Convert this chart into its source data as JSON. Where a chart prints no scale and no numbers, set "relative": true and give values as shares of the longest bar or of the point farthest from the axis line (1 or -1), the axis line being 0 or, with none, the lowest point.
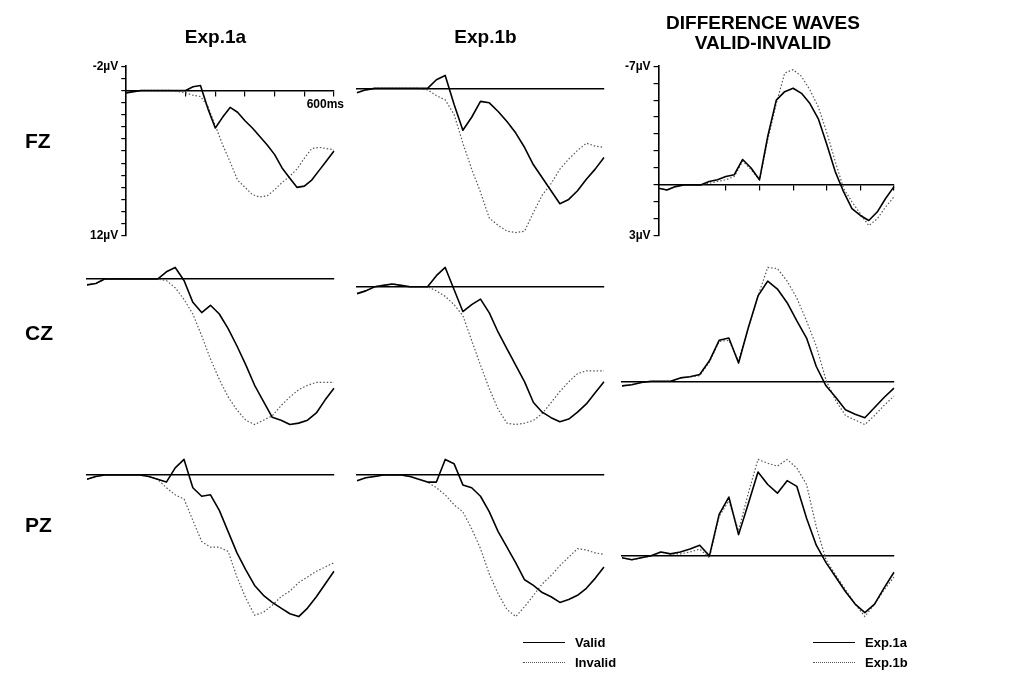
{
  "chart_data": [
    {
      "type": "line",
      "title": "Exp.1a",
      "ylabel": "FZ",
      "tick_labels": "y",
      "annotations": [
        "600ms"
      ],
      "ylim": [
        12,
        -2
      ],
      "categories": [
        null,
        null,
        null,
        null,
        null,
        null,
        null,
        null,
        null,
        null,
        null,
        null,
        null,
        null,
        null,
        null,
        null,
        null,
        null,
        null,
        null,
        null,
        null,
        null,
        null,
        null,
        null,
        null,
        null
      ],
      "yticks": [
        {
          "value": -2,
          "label": "-2µV"
        },
        {
          "value": -1,
          "label": null
        },
        {
          "value": 0,
          "label": null
        },
        {
          "value": 1,
          "label": null
        },
        {
          "value": 2,
          "label": null
        },
        {
          "value": 3,
          "label": null
        },
        {
          "value": 4,
          "label": null
        },
        {
          "value": 5,
          "label": null
        },
        {
          "value": 6,
          "label": null
        },
        {
          "value": 7,
          "label": null
        },
        {
          "value": 8,
          "label": null
        },
        {
          "value": 9,
          "label": null
        },
        {
          "value": 10,
          "label": null
        },
        {
          "value": 11,
          "label": null
        },
        {
          "value": 12,
          "label": "12µV"
        }
      ],
      "series": [
        {
          "color": "#000000",
          "line_style": "solid",
          "values": [
            0.2,
            0.1,
            0,
            0,
            0,
            0,
            0,
            0,
            0,
            -0.3,
            -0.4,
            1.5,
            3.1,
            2.2,
            1.4,
            1.8,
            2.5,
            3.1,
            3.8,
            4.5,
            5.3,
            6.4,
            7.2,
            8.0,
            7.9,
            7.4,
            6.6,
            5.8,
            5.0
          ]
        },
        {
          "color": "#555555",
          "line_style": "dotted",
          "values": [
            0.2,
            0.1,
            0,
            0,
            0,
            0,
            0,
            0.1,
            0.2,
            0.4,
            0.5,
            1.3,
            2.9,
            4.5,
            5.9,
            7.4,
            8.0,
            8.6,
            8.8,
            8.7,
            8.2,
            7.6,
            7.1,
            6.5,
            5.6,
            4.8,
            4.7,
            4.8,
            4.9
          ]
        }
      ]
    },
    {
      "type": "line",
      "title": "Exp.1b",
      "relative": true,
      "categories": [
        null,
        null,
        null,
        null,
        null,
        null,
        null,
        null,
        null,
        null,
        null,
        null,
        null,
        null,
        null,
        null,
        null,
        null,
        null,
        null,
        null,
        null,
        null,
        null,
        null,
        null,
        null,
        null,
        null
      ],
      "series": [
        {
          "color": "#000000",
          "line_style": "solid",
          "values": [
            -0.03,
            -0.01,
            0,
            0,
            0,
            0,
            0,
            0,
            0,
            0.06,
            0.09,
            -0.11,
            -0.29,
            -0.2,
            -0.09,
            -0.1,
            -0.16,
            -0.23,
            -0.31,
            -0.41,
            -0.53,
            -0.62,
            -0.71,
            -0.8,
            -0.77,
            -0.71,
            -0.63,
            -0.56,
            -0.48
          ]
        },
        {
          "color": "#555555",
          "line_style": "dotted",
          "values": [
            -0.03,
            -0.01,
            0,
            0,
            0,
            0,
            0,
            0,
            -0.01,
            -0.05,
            -0.08,
            -0.18,
            -0.38,
            -0.56,
            -0.72,
            -0.9,
            -0.95,
            -0.99,
            -1,
            -0.99,
            -0.86,
            -0.74,
            -0.66,
            -0.56,
            -0.49,
            -0.43,
            -0.38,
            -0.4,
            -0.41
          ]
        }
      ]
    },
    {
      "type": "line",
      "title": "DIFFERENCE WAVES",
      "subtitle": "VALID-INVALID",
      "tick_labels": "y",
      "ylim": [
        3,
        -7
      ],
      "categories": [
        null,
        null,
        null,
        null,
        null,
        null,
        null,
        null,
        null,
        null,
        null,
        null,
        null,
        null,
        null,
        null,
        null,
        null,
        null,
        null,
        null,
        null,
        null,
        null,
        null,
        null,
        null,
        null,
        null
      ],
      "yticks": [
        {
          "value": -7,
          "label": "-7µV"
        },
        {
          "value": -6,
          "label": null
        },
        {
          "value": -5,
          "label": null
        },
        {
          "value": -4,
          "label": null
        },
        {
          "value": -3,
          "label": null
        },
        {
          "value": -2,
          "label": null
        },
        {
          "value": -1,
          "label": null
        },
        {
          "value": 0,
          "label": null
        },
        {
          "value": 1,
          "label": null
        },
        {
          "value": 2,
          "label": null
        },
        {
          "value": 3,
          "label": "3µV"
        }
      ],
      "series": [
        {
          "color": "#000000",
          "line_style": "solid",
          "values": [
            0.2,
            0.3,
            0.1,
            0,
            0,
            0,
            -0.2,
            -0.3,
            -0.5,
            -0.6,
            -1.5,
            -1.0,
            -0.3,
            -2.9,
            -5.0,
            -5.5,
            -5.7,
            -5.4,
            -4.8,
            -3.9,
            -2.4,
            -0.8,
            0.4,
            1.4,
            1.8,
            2.1,
            1.6,
            0.8,
            0.1
          ]
        },
        {
          "color": "#555555",
          "line_style": "dotted",
          "values": [
            0.2,
            0.3,
            0.1,
            0,
            0,
            0,
            -0.1,
            -0.2,
            -0.3,
            -0.5,
            -1.4,
            -0.9,
            -0.3,
            -2.7,
            -4.8,
            -6.6,
            -6.8,
            -6.4,
            -5.6,
            -4.6,
            -3.1,
            -1.4,
            0.2,
            1.0,
            1.7,
            2.4,
            2.0,
            1.3,
            0.7
          ]
        }
      ]
    },
    {
      "type": "line",
      "ylabel": "CZ",
      "relative": true,
      "categories": [
        null,
        null,
        null,
        null,
        null,
        null,
        null,
        null,
        null,
        null,
        null,
        null,
        null,
        null,
        null,
        null,
        null,
        null,
        null,
        null,
        null,
        null,
        null,
        null,
        null,
        null,
        null,
        null,
        null
      ],
      "series": [
        {
          "color": "#000000",
          "line_style": "solid",
          "values": [
            -0.04,
            -0.03,
            0,
            0,
            0,
            0,
            0,
            0,
            0,
            0.05,
            0.08,
            -0.01,
            -0.16,
            -0.23,
            -0.18,
            -0.24,
            -0.34,
            -0.46,
            -0.59,
            -0.73,
            -0.84,
            -0.95,
            -0.97,
            -1,
            -0.99,
            -0.97,
            -0.92,
            -0.83,
            -0.75
          ]
        },
        {
          "color": "#555555",
          "line_style": "dotted",
          "values": [
            -0.04,
            -0.03,
            0,
            0,
            0,
            0,
            0,
            0,
            0,
            -0.01,
            -0.06,
            -0.14,
            -0.24,
            -0.39,
            -0.55,
            -0.69,
            -0.81,
            -0.9,
            -0.97,
            -1,
            -0.97,
            -0.94,
            -0.87,
            -0.81,
            -0.76,
            -0.73,
            -0.71,
            -0.71,
            -0.71
          ]
        }
      ]
    },
    {
      "type": "line",
      "relative": true,
      "categories": [
        null,
        null,
        null,
        null,
        null,
        null,
        null,
        null,
        null,
        null,
        null,
        null,
        null,
        null,
        null,
        null,
        null,
        null,
        null,
        null,
        null,
        null,
        null,
        null,
        null,
        null,
        null,
        null,
        null
      ],
      "series": [
        {
          "color": "#000000",
          "line_style": "solid",
          "values": [
            -0.05,
            -0.03,
            0,
            0.01,
            0.02,
            0.01,
            0,
            0,
            0,
            0.08,
            0.14,
            -0.02,
            -0.18,
            -0.13,
            -0.09,
            -0.19,
            -0.33,
            -0.45,
            -0.57,
            -0.69,
            -0.84,
            -0.91,
            -0.95,
            -0.98,
            -0.96,
            -0.91,
            -0.85,
            -0.77,
            -0.69
          ]
        },
        {
          "color": "#555555",
          "line_style": "dotted",
          "values": [
            -0.05,
            -0.03,
            0,
            0.01,
            0.02,
            0.01,
            0,
            0,
            0,
            -0.03,
            -0.07,
            -0.13,
            -0.21,
            -0.39,
            -0.57,
            -0.74,
            -0.89,
            -0.99,
            -1,
            -0.99,
            -0.97,
            -0.92,
            -0.84,
            -0.76,
            -0.69,
            -0.63,
            -0.61,
            -0.61,
            -0.61
          ]
        }
      ]
    },
    {
      "type": "line",
      "relative": true,
      "categories": [
        null,
        null,
        null,
        null,
        null,
        null,
        null,
        null,
        null,
        null,
        null,
        null,
        null,
        null,
        null,
        null,
        null,
        null,
        null,
        null,
        null,
        null,
        null,
        null,
        null,
        null,
        null,
        null,
        null
      ],
      "series": [
        {
          "color": "#000000",
          "line_style": "solid",
          "values": [
            -0.04,
            -0.03,
            -0.01,
            0,
            0,
            0,
            0.03,
            0.04,
            0.06,
            0.18,
            0.36,
            0.38,
            0.16,
            0.47,
            0.75,
            0.88,
            0.81,
            0.69,
            0.53,
            0.38,
            0.13,
            -0.04,
            -0.14,
            -0.25,
            -0.29,
            -0.32,
            -0.23,
            -0.14,
            -0.06
          ]
        },
        {
          "color": "#555555",
          "line_style": "dotted",
          "values": [
            -0.04,
            -0.03,
            -0.01,
            0,
            0,
            0,
            0.03,
            0.04,
            0.05,
            0.17,
            0.35,
            0.36,
            0.18,
            0.47,
            0.75,
            1,
            0.99,
            0.88,
            0.73,
            0.53,
            0.31,
            0.01,
            -0.17,
            -0.3,
            -0.34,
            -0.38,
            -0.3,
            -0.21,
            -0.13
          ]
        }
      ]
    },
    {
      "type": "line",
      "ylabel": "PZ",
      "relative": true,
      "categories": [
        null,
        null,
        null,
        null,
        null,
        null,
        null,
        null,
        null,
        null,
        null,
        null,
        null,
        null,
        null,
        null,
        null,
        null,
        null,
        null,
        null,
        null,
        null,
        null,
        null,
        null,
        null,
        null,
        null
      ],
      "series": [
        {
          "color": "#000000",
          "line_style": "solid",
          "values": [
            -0.03,
            -0.01,
            0,
            0,
            0,
            0,
            0,
            -0.01,
            -0.03,
            -0.05,
            0.05,
            0.11,
            -0.09,
            -0.15,
            -0.14,
            -0.25,
            -0.4,
            -0.55,
            -0.67,
            -0.78,
            -0.85,
            -0.9,
            -0.94,
            -0.98,
            -1,
            -0.94,
            -0.86,
            -0.77,
            -0.68
          ]
        },
        {
          "color": "#555555",
          "line_style": "dotted",
          "values": [
            -0.03,
            -0.01,
            0,
            0,
            0,
            0,
            0,
            -0.01,
            -0.03,
            -0.09,
            -0.14,
            -0.17,
            -0.32,
            -0.47,
            -0.51,
            -0.51,
            -0.54,
            -0.72,
            -0.87,
            -0.99,
            -0.97,
            -0.92,
            -0.86,
            -0.82,
            -0.76,
            -0.72,
            -0.68,
            -0.65,
            -0.62
          ]
        }
      ]
    },
    {
      "type": "line",
      "relative": true,
      "legend": "bottom right",
      "categories": [
        null,
        null,
        null,
        null,
        null,
        null,
        null,
        null,
        null,
        null,
        null,
        null,
        null,
        null,
        null,
        null,
        null,
        null,
        null,
        null,
        null,
        null,
        null,
        null,
        null,
        null,
        null,
        null,
        null
      ],
      "series": [
        {
          "name": "Valid",
          "color": "#000000",
          "line_style": "solid",
          "values": [
            -0.04,
            -0.02,
            -0.01,
            0,
            0,
            0,
            -0.01,
            -0.03,
            -0.05,
            -0.05,
            0.11,
            0.08,
            -0.07,
            -0.09,
            -0.15,
            -0.26,
            -0.4,
            -0.51,
            -0.62,
            -0.74,
            -0.78,
            -0.83,
            -0.86,
            -0.9,
            -0.88,
            -0.85,
            -0.8,
            -0.73,
            -0.65
          ]
        },
        {
          "name": "Invalid",
          "color": "#555555",
          "line_style": "dotted",
          "values": [
            -0.04,
            -0.02,
            -0.01,
            0,
            0,
            0,
            -0.01,
            -0.03,
            -0.05,
            -0.09,
            -0.14,
            -0.21,
            -0.26,
            -0.38,
            -0.52,
            -0.7,
            -0.84,
            -0.95,
            -1,
            -0.93,
            -0.85,
            -0.77,
            -0.71,
            -0.64,
            -0.58,
            -0.52,
            -0.53,
            -0.55,
            -0.56
          ]
        }
      ]
    },
    {
      "type": "line",
      "relative": true,
      "legend": "bottom right",
      "categories": [
        null,
        null,
        null,
        null,
        null,
        null,
        null,
        null,
        null,
        null,
        null,
        null,
        null,
        null,
        null,
        null,
        null,
        null,
        null,
        null,
        null,
        null,
        null,
        null,
        null,
        null,
        null,
        null,
        null
      ],
      "series": [
        {
          "name": "Exp.1a",
          "color": "#000000",
          "line_style": "solid",
          "values": [
            -0.02,
            -0.04,
            -0.02,
            0,
            0.04,
            0.02,
            0.04,
            0.07,
            0.11,
            0,
            0.43,
            0.61,
            0.22,
            0.54,
            0.87,
            0.74,
            0.65,
            0.78,
            0.72,
            0.39,
            0.11,
            -0.07,
            -0.22,
            -0.37,
            -0.5,
            -0.59,
            -0.5,
            -0.33,
            -0.17
          ]
        },
        {
          "name": "Exp.1b",
          "color": "#555555",
          "line_style": "dotted",
          "values": [
            -0.02,
            -0.04,
            -0.02,
            0,
            0.04,
            0.02,
            0.02,
            0.04,
            0.07,
            -0.02,
            0.41,
            0.57,
            0.26,
            0.65,
            1,
            0.96,
            0.93,
            1,
            0.91,
            0.74,
            0.3,
            -0.04,
            -0.2,
            -0.35,
            -0.5,
            -0.63,
            -0.5,
            -0.35,
            -0.22
          ]
        }
      ]
    }
  ]
}
